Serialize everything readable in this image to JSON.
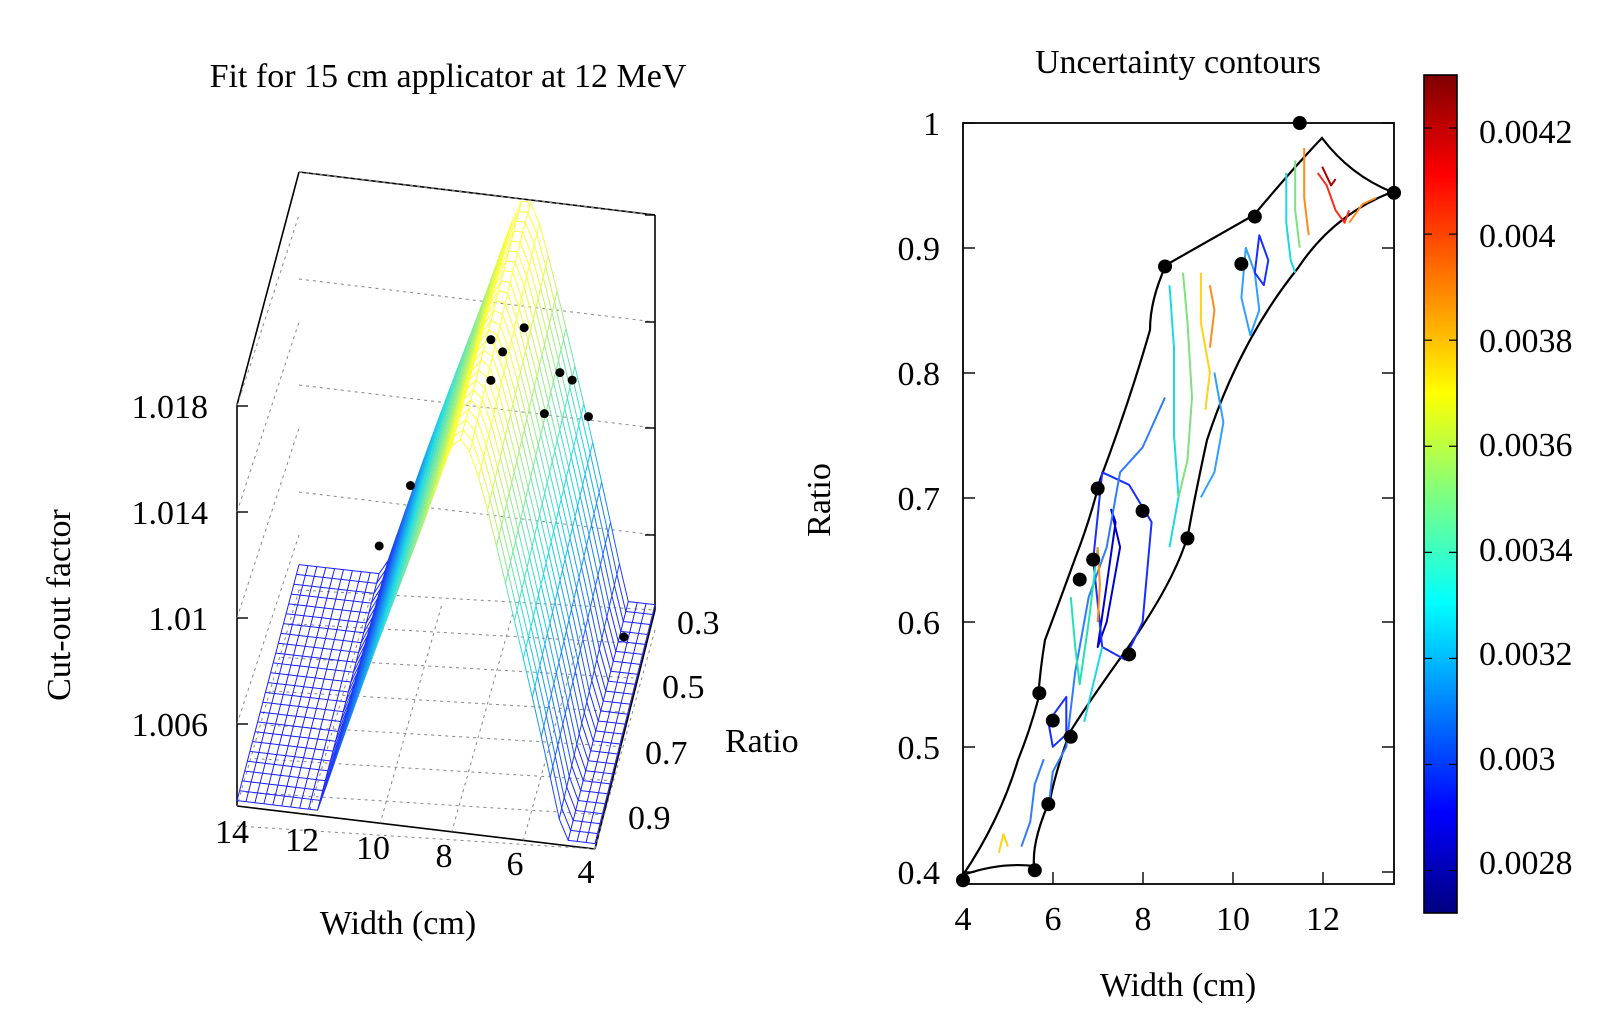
{
  "chart_data": [
    {
      "type": "surface",
      "title": "Fit for 15 cm applicator at 12 MeV",
      "xlabel": "Width (cm)",
      "ylabel": "Ratio",
      "zlabel": "Cut-out factor",
      "x_ticks": [
        "14",
        "12",
        "10",
        "8",
        "6",
        "4"
      ],
      "y_ticks": [
        "0.3",
        "0.5",
        "0.7",
        "0.9"
      ],
      "z_ticks": [
        "1.018",
        "1.014",
        "1.01",
        "1.006"
      ],
      "xlim": [
        4,
        14
      ],
      "ylim": [
        0.3,
        1.0
      ],
      "zlim": [
        1.006,
        1.02
      ],
      "surface_colormap": [
        "#1a1aff",
        "#19d9e6",
        "#ffff33"
      ],
      "grid": true,
      "points": [
        {
          "width": 11.5,
          "ratio": 0.4,
          "factor": 1.0085
        },
        {
          "width": 10.5,
          "ratio": 0.45,
          "factor": 1.0115
        },
        {
          "width": 8.0,
          "ratio": 0.55,
          "factor": 1.017
        },
        {
          "width": 8.0,
          "ratio": 0.55,
          "factor": 1.0185
        },
        {
          "width": 7.5,
          "ratio": 0.62,
          "factor": 1.019
        },
        {
          "width": 6.8,
          "ratio": 0.66,
          "factor": 1.0205
        },
        {
          "width": 6.5,
          "ratio": 0.55,
          "factor": 1.016
        },
        {
          "width": 5.8,
          "ratio": 0.66,
          "factor": 1.019
        },
        {
          "width": 5.6,
          "ratio": 0.6,
          "factor": 1.018
        },
        {
          "width": 5.0,
          "ratio": 0.66,
          "factor": 1.0175
        },
        {
          "width": 4.2,
          "ratio": 0.58,
          "factor": 1.0085
        }
      ]
    },
    {
      "type": "contour",
      "title": "Uncertainty contours",
      "xlabel": "Width (cm)",
      "ylabel": "Ratio",
      "x_ticks": [
        "4",
        "6",
        "8",
        "10",
        "12"
      ],
      "y_ticks": [
        "1",
        "0.9",
        "0.8",
        "0.7",
        "0.6",
        "0.5",
        "0.4"
      ],
      "xlim": [
        4,
        13.6
      ],
      "ylim": [
        0.39,
        1.0
      ],
      "colorbar_ticks": [
        "0.0042",
        "0.004",
        "0.0038",
        "0.0036",
        "0.0034",
        "0.0032",
        "0.003",
        "0.0028"
      ],
      "colorbar_range": [
        0.00272,
        0.0043
      ],
      "colormap": [
        "#00007f",
        "#0000ff",
        "#007fff",
        "#00ffff",
        "#7fff7f",
        "#ffff00",
        "#ff7f00",
        "#ff0000",
        "#7f0000"
      ],
      "points": [
        {
          "x": 4.0,
          "y": 0.393
        },
        {
          "x": 5.6,
          "y": 0.401
        },
        {
          "x": 5.9,
          "y": 0.454
        },
        {
          "x": 6.0,
          "y": 0.521
        },
        {
          "x": 5.7,
          "y": 0.543
        },
        {
          "x": 6.4,
          "y": 0.508
        },
        {
          "x": 7.7,
          "y": 0.574
        },
        {
          "x": 6.6,
          "y": 0.634
        },
        {
          "x": 6.9,
          "y": 0.65
        },
        {
          "x": 7.0,
          "y": 0.707
        },
        {
          "x": 8.0,
          "y": 0.689
        },
        {
          "x": 9.0,
          "y": 0.667
        },
        {
          "x": 8.5,
          "y": 0.885
        },
        {
          "x": 10.2,
          "y": 0.887
        },
        {
          "x": 10.5,
          "y": 0.925
        },
        {
          "x": 11.5,
          "y": 1.0
        },
        {
          "x": 13.6,
          "y": 0.944
        }
      ]
    }
  ]
}
